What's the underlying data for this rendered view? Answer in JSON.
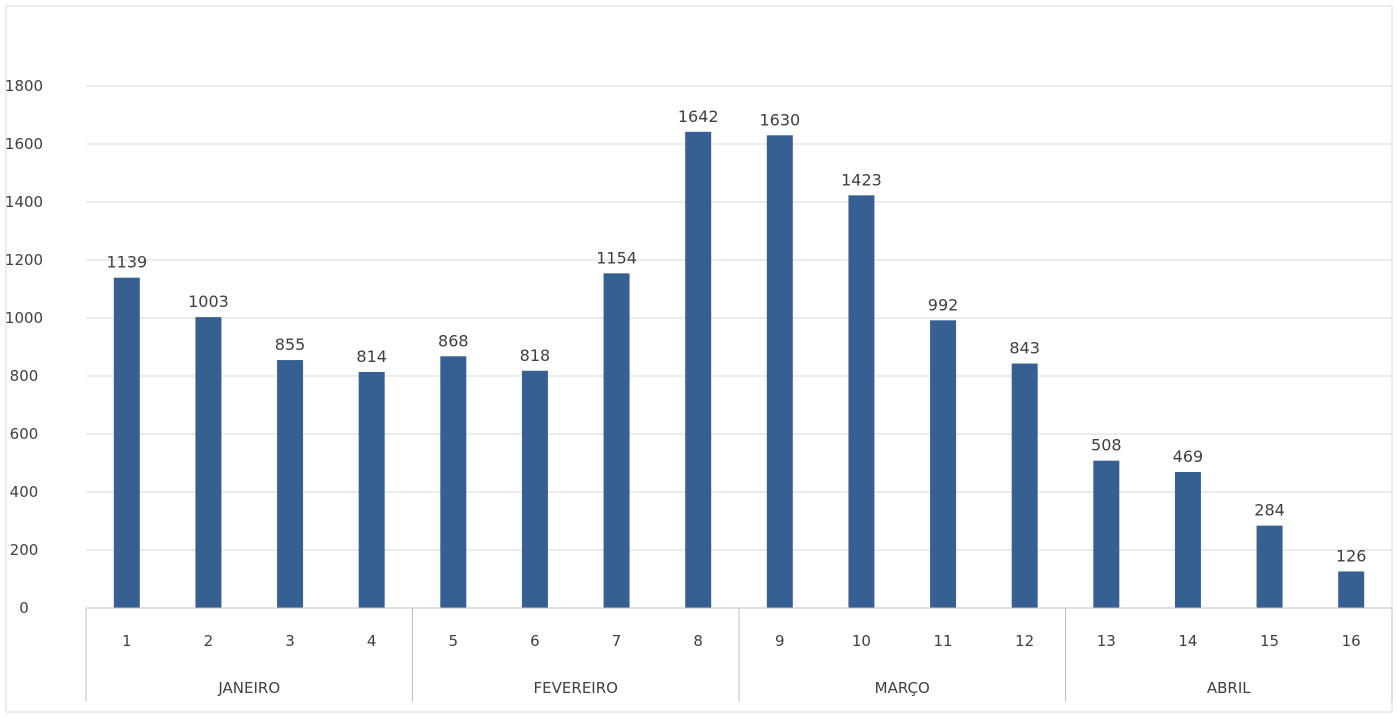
{
  "chart_data": {
    "type": "bar",
    "title": "",
    "xlabel": "",
    "ylabel": "",
    "ylim": [
      0,
      1800
    ],
    "ytick_step": 200,
    "yticks": [
      "0",
      "200",
      "400",
      "600",
      "800",
      "1000",
      "1200",
      "1400",
      "1600",
      "1800"
    ],
    "grid": true,
    "legend": "none",
    "categories": [
      "1",
      "2",
      "3",
      "4",
      "5",
      "6",
      "7",
      "8",
      "9",
      "10",
      "11",
      "12",
      "13",
      "14",
      "15",
      "16"
    ],
    "values": [
      1139,
      1003,
      855,
      814,
      868,
      818,
      1154,
      1642,
      1630,
      1423,
      992,
      843,
      508,
      469,
      284,
      126
    ],
    "groups": [
      {
        "label": "JANEIRO",
        "count": 4
      },
      {
        "label": "FEVEREIRO",
        "count": 4
      },
      {
        "label": "MARÇO",
        "count": 4
      },
      {
        "label": "ABRIL",
        "count": 4
      }
    ],
    "colors": {
      "bar": "#376092",
      "grid": "#d9d9d9",
      "axis": "#bfbfbf",
      "text": "#404040"
    }
  }
}
